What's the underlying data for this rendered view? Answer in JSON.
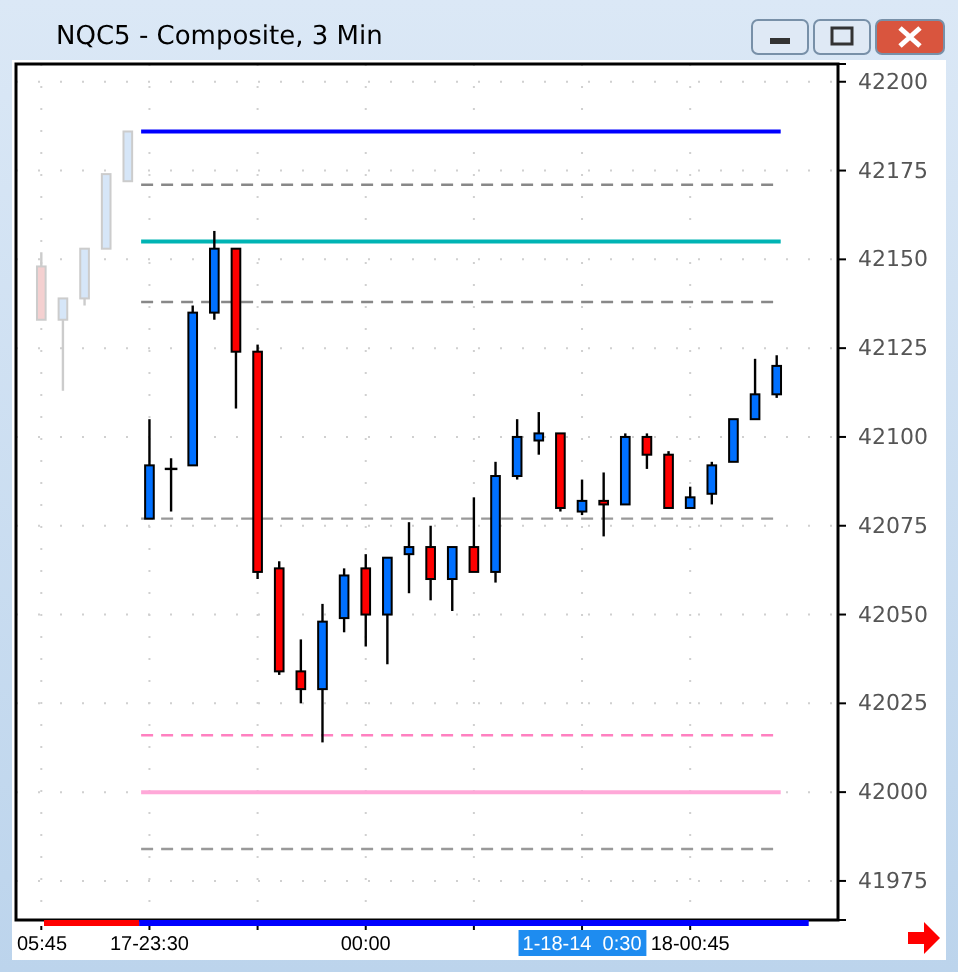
{
  "chart_data": {
    "type": "candlestick",
    "title": "NQC5 - Composite, 3 Min",
    "categories": [
      "05:45",
      null,
      null,
      null,
      null,
      "17-23:30",
      null,
      null,
      null,
      null,
      null,
      null,
      null,
      null,
      null,
      "00:00",
      null,
      null,
      null,
      null,
      null,
      null,
      null,
      null,
      null,
      "1-18-14  0:30",
      null,
      null,
      null,
      null,
      "18-00:45",
      null,
      null,
      null,
      null
    ],
    "ohlc": [
      [
        42148,
        42152,
        42133,
        42133
      ],
      [
        42133,
        42139,
        42113,
        42139
      ],
      [
        42139,
        42153,
        42137,
        42153
      ],
      [
        42153,
        42174,
        42153,
        42174
      ],
      [
        42172,
        42186,
        42172,
        42186
      ],
      [
        42077,
        42105,
        42077,
        42092
      ],
      [
        42091,
        42094,
        42079,
        42091
      ],
      [
        42092,
        42137,
        42092,
        42135
      ],
      [
        42135,
        42158,
        42133,
        42153
      ],
      [
        42153,
        42153,
        42108,
        42124
      ],
      [
        42124,
        42126,
        42060,
        42062
      ],
      [
        42063,
        42065,
        42033,
        42034
      ],
      [
        42034,
        42043,
        42025,
        42029
      ],
      [
        42029,
        42053,
        42014,
        42048
      ],
      [
        42049,
        42063,
        42045,
        42061
      ],
      [
        42063,
        42067,
        42041,
        42050
      ],
      [
        42050,
        42066,
        42036,
        42066
      ],
      [
        42067,
        42076,
        42056,
        42069
      ],
      [
        42069,
        42075,
        42054,
        42060
      ],
      [
        42060,
        42069,
        42051,
        42069
      ],
      [
        42069,
        42083,
        42062,
        42062
      ],
      [
        42062,
        42093,
        42059,
        42089
      ],
      [
        42089,
        42105,
        42088,
        42100
      ],
      [
        42099,
        42107,
        42095,
        42101
      ],
      [
        42101,
        42101,
        42079,
        42080
      ],
      [
        42079,
        42088,
        42078,
        42082
      ],
      [
        42082,
        42090,
        42072,
        42081
      ],
      [
        42081,
        42101,
        42081,
        42100
      ],
      [
        42100,
        42101,
        42091,
        42095
      ],
      [
        42095,
        42096,
        42080,
        42080
      ],
      [
        42080,
        42086,
        42080,
        42083
      ],
      [
        42084,
        42093,
        42081,
        42092
      ],
      [
        42093,
        42105,
        42093,
        42105
      ],
      [
        42105,
        42122,
        42105,
        42112
      ],
      [
        42112,
        42123,
        42111,
        42120
      ]
    ],
    "colors": [
      "#f4d0d0",
      "#d6e6f8",
      "#d6e6f8",
      "#d6e6f8",
      "#d6e6f8",
      "#0070ff",
      "#000000",
      "#0070ff",
      "#0070ff",
      "#ff0000",
      "#ff0000",
      "#ff0000",
      "#ff0000",
      "#0070ff",
      "#0070ff",
      "#ff0000",
      "#0070ff",
      "#0070ff",
      "#ff0000",
      "#0070ff",
      "#ff0000",
      "#0070ff",
      "#0070ff",
      "#0070ff",
      "#ff0000",
      "#0070ff",
      "#ff0000",
      "#0070ff",
      "#ff0000",
      "#ff0000",
      "#0070ff",
      "#0070ff",
      "#0070ff",
      "#0070ff",
      "#0070ff"
    ],
    "ylim": [
      41964,
      42205
    ],
    "yticks": [
      41975,
      42000,
      42025,
      42050,
      42075,
      42100,
      42125,
      42150,
      42175,
      42200
    ],
    "grid": true,
    "ref_lines": [
      {
        "axis": "y",
        "value": 42186,
        "color": "#0000ff",
        "line_style": "solid"
      },
      {
        "axis": "y",
        "value": 42171,
        "color": "#888888",
        "line_style": "dashed"
      },
      {
        "axis": "y",
        "value": 42155,
        "color": "#00b4b4",
        "line_style": "solid"
      },
      {
        "axis": "y",
        "value": 42138,
        "color": "#888888",
        "line_style": "dashed"
      },
      {
        "axis": "y",
        "value": 42077,
        "color": "#999999",
        "line_style": "dashed"
      },
      {
        "axis": "y",
        "value": 42016,
        "color": "#ff80c0",
        "line_style": "dashed"
      },
      {
        "axis": "y",
        "value": 42000,
        "color": "#ffa8d8",
        "line_style": "solid"
      },
      {
        "axis": "y",
        "value": 41984,
        "color": "#999999",
        "line_style": "dashed"
      }
    ]
  }
}
